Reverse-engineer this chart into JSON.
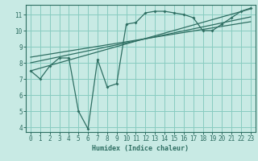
{
  "xlabel": "Humidex (Indice chaleur)",
  "bg_color": "#c8eae4",
  "line_color": "#2e6e62",
  "grid_color": "#89ccc0",
  "spine_color": "#2e6e62",
  "xlim": [
    -0.5,
    23.5
  ],
  "ylim": [
    3.7,
    11.6
  ],
  "xticks": [
    0,
    1,
    2,
    3,
    4,
    5,
    6,
    7,
    8,
    9,
    10,
    11,
    12,
    13,
    14,
    15,
    16,
    17,
    18,
    19,
    20,
    21,
    22,
    23
  ],
  "yticks": [
    4,
    5,
    6,
    7,
    8,
    9,
    10,
    11
  ],
  "main_line_x": [
    0,
    1,
    2,
    3,
    4,
    5,
    6,
    7,
    8,
    9,
    10,
    11,
    12,
    13,
    14,
    15,
    16,
    17,
    18,
    19,
    20,
    21,
    22,
    23
  ],
  "main_line_y": [
    7.5,
    7.0,
    7.8,
    8.3,
    8.3,
    5.0,
    3.9,
    8.2,
    6.5,
    6.7,
    10.4,
    10.5,
    11.1,
    11.2,
    11.2,
    11.1,
    11.0,
    10.8,
    10.0,
    10.0,
    10.4,
    10.8,
    11.2,
    11.4
  ],
  "reg_lines": [
    {
      "x": [
        0,
        23
      ],
      "y": [
        7.5,
        11.35
      ]
    },
    {
      "x": [
        0,
        23
      ],
      "y": [
        8.0,
        10.85
      ]
    },
    {
      "x": [
        0,
        23
      ],
      "y": [
        8.35,
        10.55
      ]
    }
  ],
  "tick_fontsize": 5.5,
  "xlabel_fontsize": 6.0
}
